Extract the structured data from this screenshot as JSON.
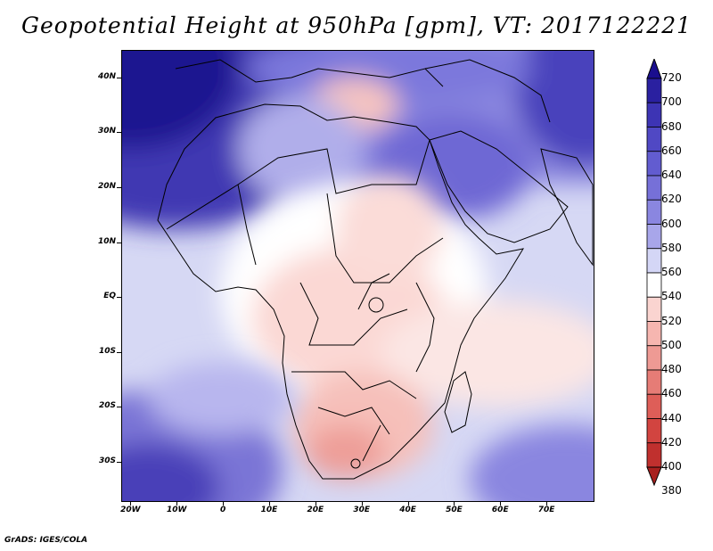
{
  "title": "Geopotential Height at 950hPa [gpm], VT: 2017122221",
  "footer": "GrADS: IGES/COLA",
  "map": {
    "lat_range": [
      -37,
      45
    ],
    "lon_range": [
      -22,
      80
    ],
    "lat_labels": [
      {
        "lat": 40,
        "label": "40N"
      },
      {
        "lat": 30,
        "label": "30N"
      },
      {
        "lat": 20,
        "label": "20N"
      },
      {
        "lat": 10,
        "label": "10N"
      },
      {
        "lat": 0,
        "label": "EQ"
      },
      {
        "lat": -10,
        "label": "10S"
      },
      {
        "lat": -20,
        "label": "20S"
      },
      {
        "lat": -30,
        "label": "30S"
      }
    ],
    "lon_labels": [
      {
        "lon": -20,
        "label": "20W"
      },
      {
        "lon": -10,
        "label": "10W"
      },
      {
        "lon": 0,
        "label": "0"
      },
      {
        "lon": 10,
        "label": "10E"
      },
      {
        "lon": 20,
        "label": "20E"
      },
      {
        "lon": 30,
        "label": "30E"
      },
      {
        "lon": 40,
        "label": "40E"
      },
      {
        "lon": 50,
        "label": "50E"
      },
      {
        "lon": 60,
        "label": "60E"
      },
      {
        "lon": 70,
        "label": "70E"
      }
    ]
  },
  "colorbar": {
    "levels": [
      "720",
      "700",
      "680",
      "660",
      "640",
      "620",
      "600",
      "580",
      "560",
      "540",
      "520",
      "500",
      "480",
      "460",
      "440",
      "420",
      "400",
      "380"
    ],
    "colors": [
      "#1a0e8e",
      "#2a20a0",
      "#3d34b4",
      "#5048c4",
      "#625cd0",
      "#7670d8",
      "#8a86e0",
      "#a8a6ea",
      "#d4d6f6",
      "#ffffff",
      "#fad4d0",
      "#f6b6b0",
      "#ee9a94",
      "#e67c76",
      "#de5e58",
      "#d24440",
      "#c0302e",
      "#a8201e"
    ]
  }
}
